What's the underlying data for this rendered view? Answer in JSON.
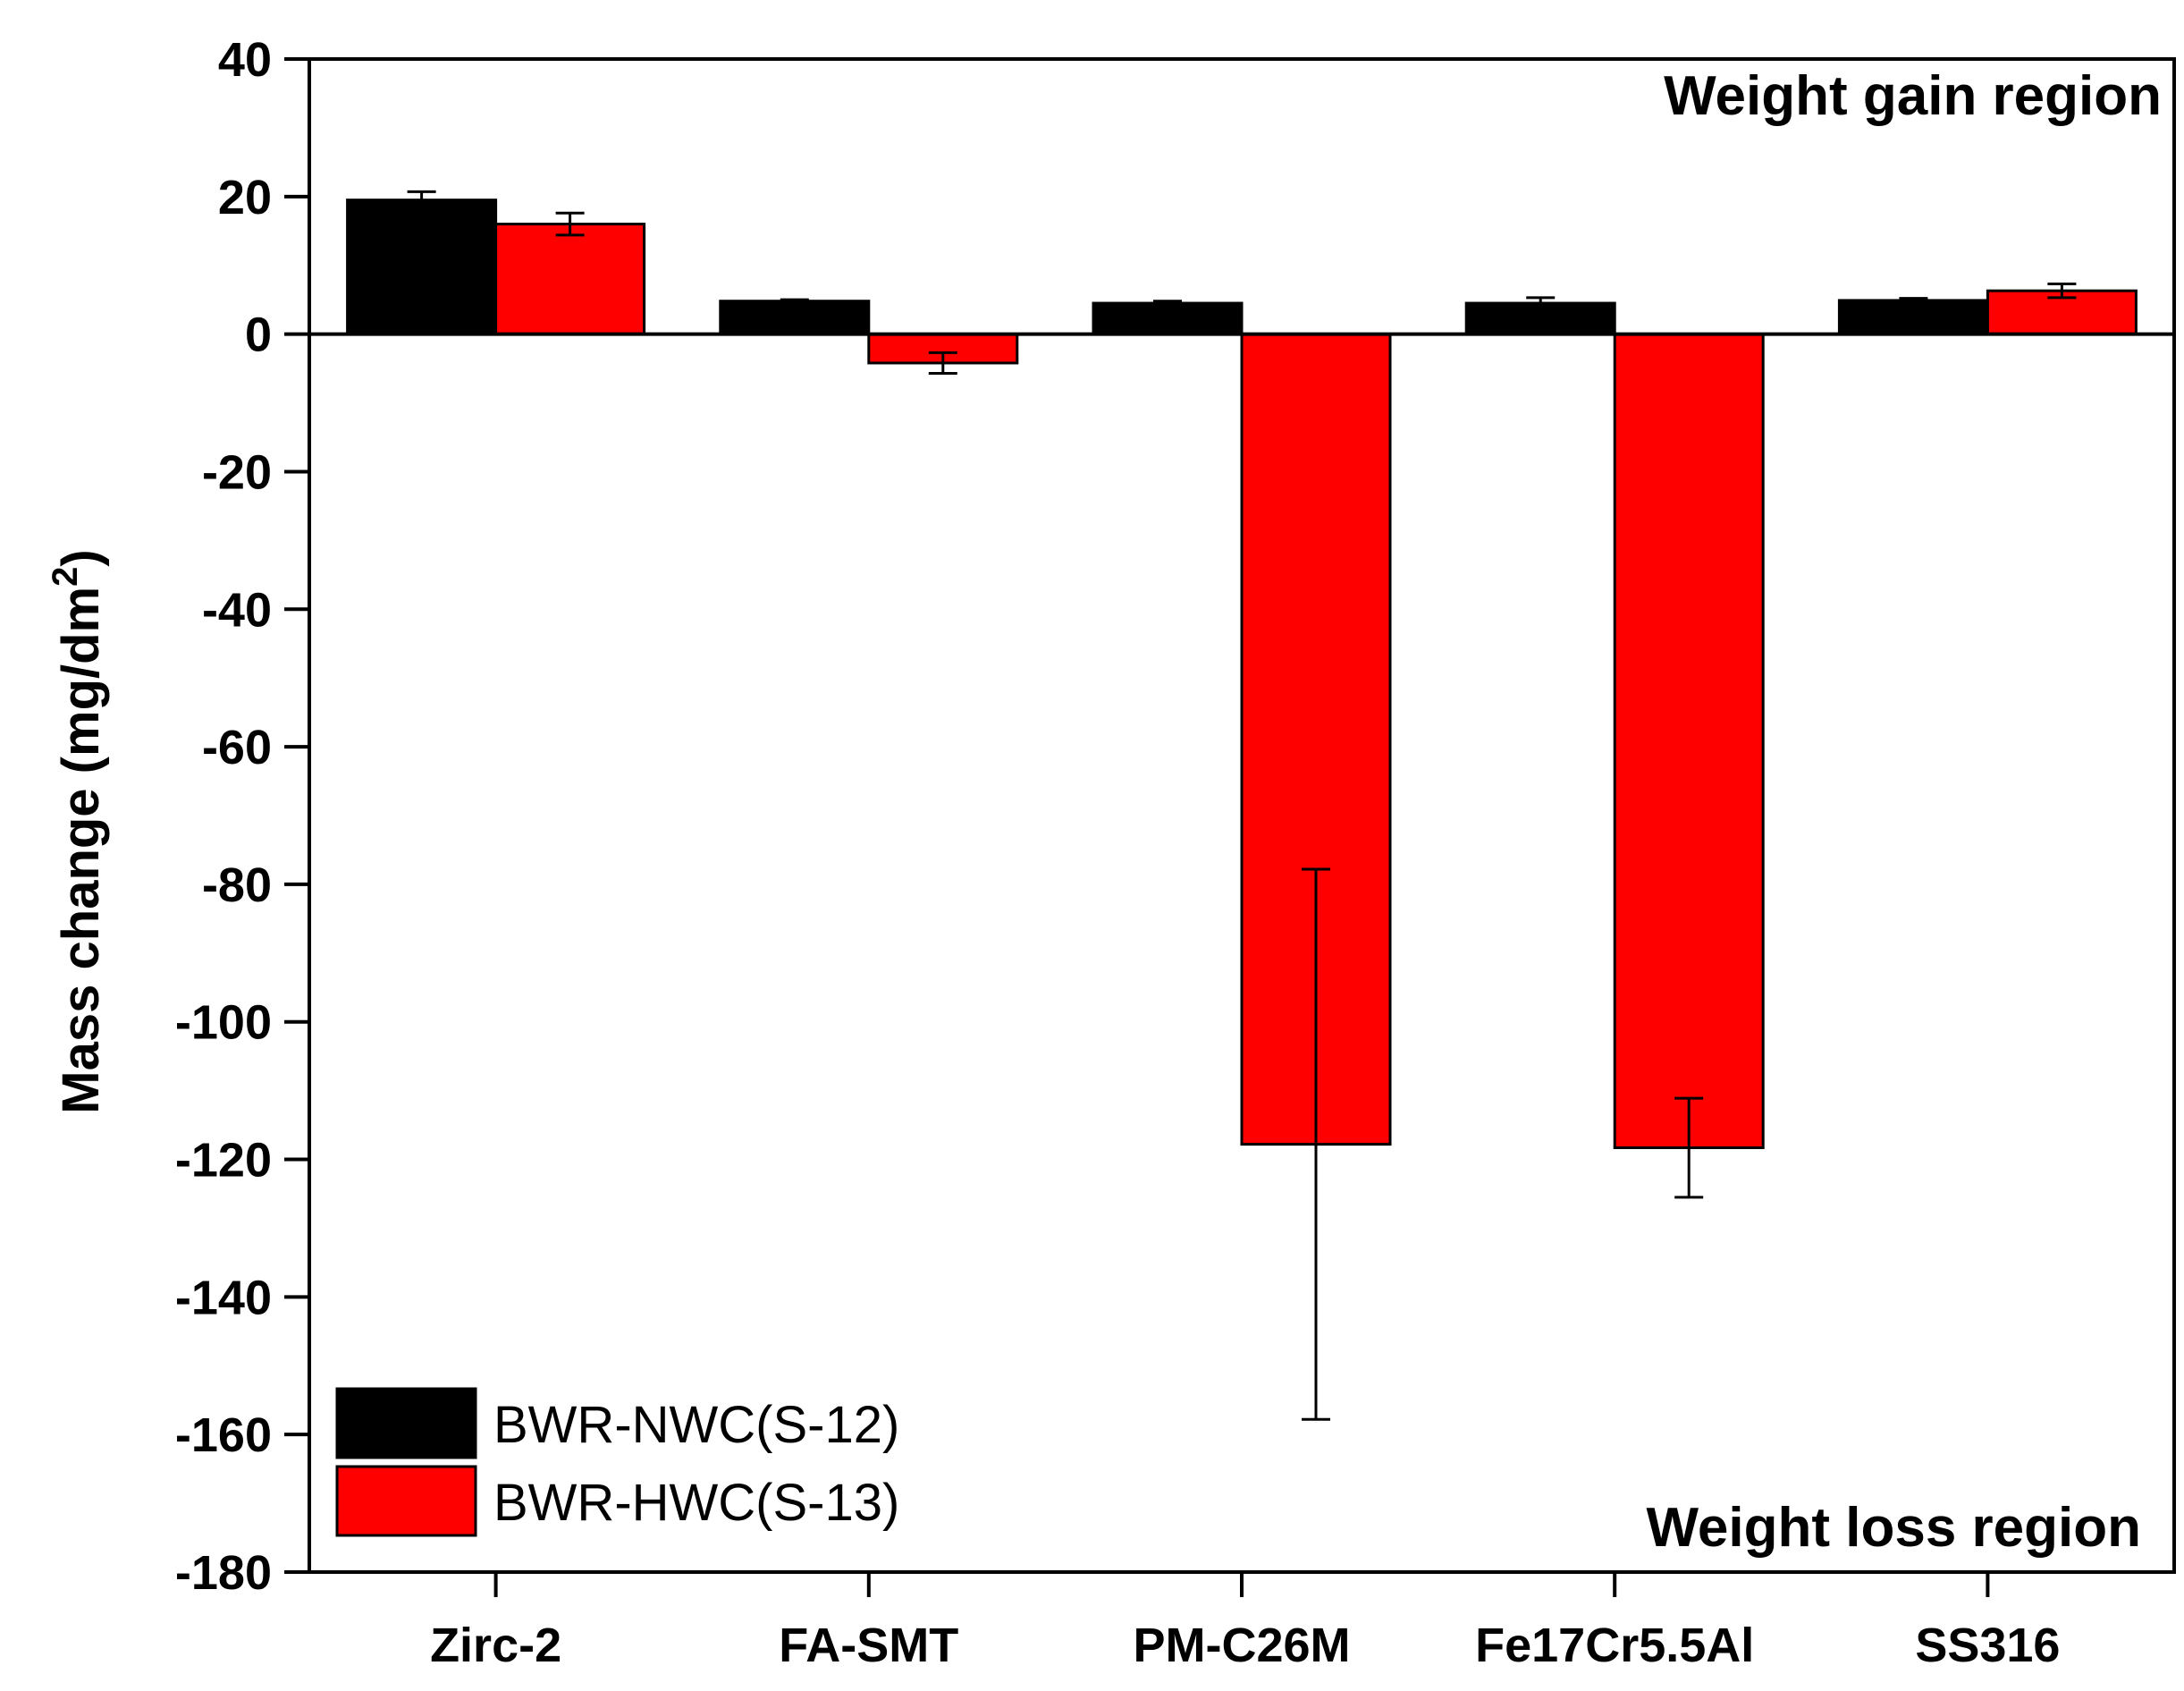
{
  "chart_data": {
    "type": "bar",
    "title": "",
    "xlabel": "",
    "ylabel": "Mass change (mg/dm",
    "ylabel_superscript": "2",
    "ylabel_close": ")",
    "ylim": [
      -180,
      40
    ],
    "yticks": [
      40,
      20,
      0,
      -20,
      -40,
      -60,
      -80,
      -100,
      -120,
      -140,
      -160,
      -180
    ],
    "ytick_labels": [
      "40",
      "20",
      "0",
      "-20",
      "-40",
      "-60",
      "-80",
      "-100",
      "-120",
      "-140",
      "-160",
      "-180"
    ],
    "categories": [
      "Zirc-2",
      "FA-SMT",
      "PM-C26M",
      "Fe17Cr5.5Al",
      "SS316"
    ],
    "series": [
      {
        "name": "BWR-NWC(S-12)",
        "color": "#000000",
        "values": [
          19.5,
          4.8,
          4.5,
          4.5,
          4.9
        ],
        "errors": [
          1.2,
          0.2,
          0.3,
          0.8,
          0.3
        ]
      },
      {
        "name": "BWR-HWC(S-13)",
        "color": "#ff0000",
        "values": [
          16.0,
          -4.2,
          -117.8,
          -118.3,
          6.3
        ],
        "errors": [
          1.6,
          1.5,
          40.0,
          7.2,
          1.0
        ]
      }
    ],
    "annotations": {
      "top": "Weight gain region",
      "bottom": "Weight loss region"
    },
    "legend_position": "bottom-left",
    "grid": false
  }
}
